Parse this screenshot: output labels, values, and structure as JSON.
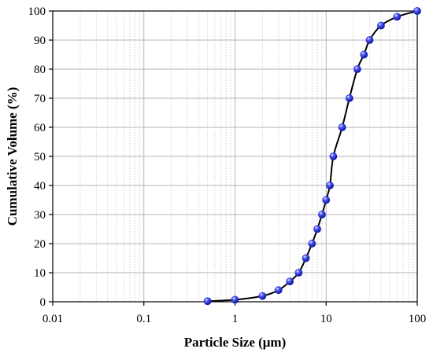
{
  "chart_data": {
    "type": "scatter",
    "title": "",
    "xlabel": "Particle Size (μm)",
    "ylabel": "Cumulative Volume (%)",
    "x_scale": "log",
    "xlim": [
      0.01,
      100
    ],
    "ylim": [
      0,
      100
    ],
    "x_ticks": [
      0.01,
      0.1,
      1,
      10,
      100
    ],
    "x_tick_labels": [
      "0.01",
      "0.1",
      "1",
      "10",
      "100"
    ],
    "y_ticks": [
      0,
      10,
      20,
      30,
      40,
      50,
      60,
      70,
      80,
      90,
      100
    ],
    "y_tick_labels": [
      "0",
      "10",
      "20",
      "30",
      "40",
      "50",
      "60",
      "70",
      "80",
      "90",
      "100"
    ],
    "grid": true,
    "legend": "none",
    "marker_color": "#1f2bd6",
    "line_color": "#000000",
    "series": [
      {
        "x": [
          0.5,
          1,
          2,
          3,
          4,
          5,
          6,
          7,
          8,
          9,
          10,
          11,
          12,
          15,
          18,
          22,
          26,
          30,
          40,
          60,
          100
        ],
        "y": [
          0.2,
          0.7,
          2,
          4,
          7,
          10,
          15,
          20,
          25,
          30,
          35,
          40,
          50,
          60,
          70,
          80,
          85,
          90,
          95,
          98,
          100
        ]
      }
    ]
  }
}
